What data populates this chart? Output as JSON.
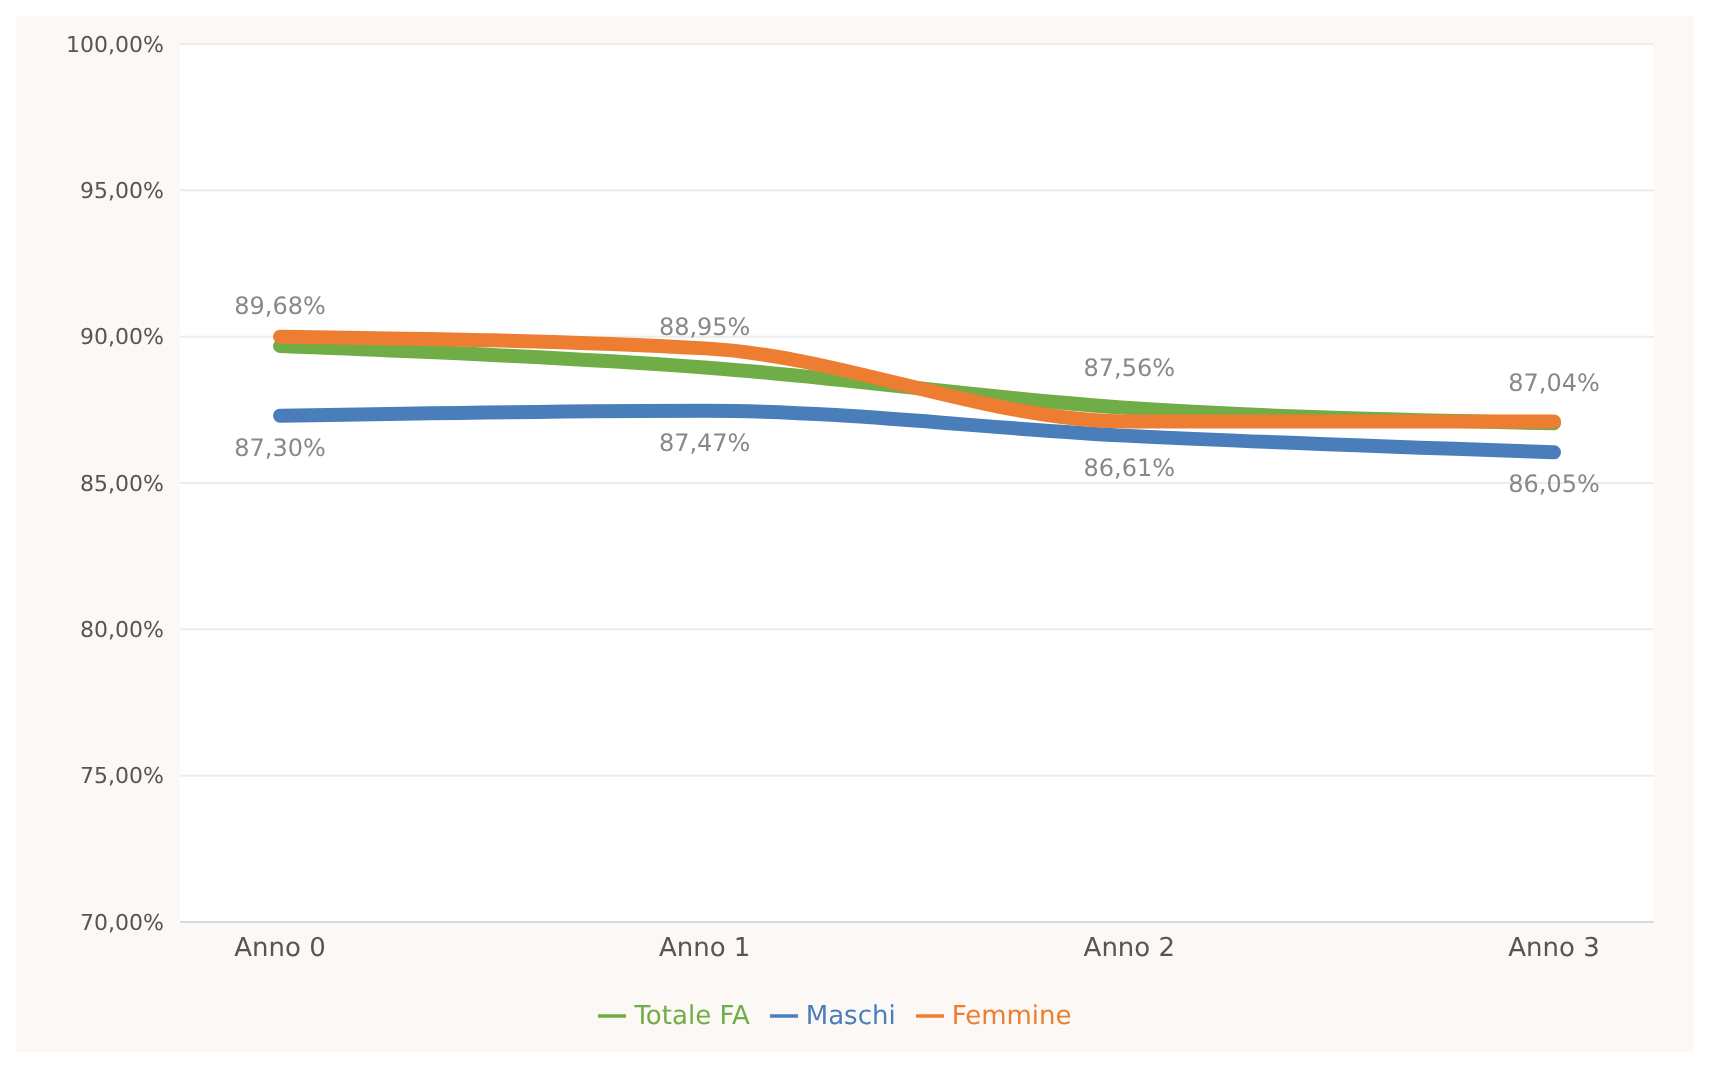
{
  "chart_data": {
    "type": "line",
    "categories": [
      "Anno 0",
      "Anno 1",
      "Anno 2",
      "Anno 3"
    ],
    "series": [
      {
        "name": "Totale FA",
        "color": "#70ad47",
        "values": [
          89.68,
          88.95,
          87.56,
          87.04
        ],
        "value_labels": [
          "89,68%",
          "88,95%",
          "87,56%",
          "87,04%"
        ]
      },
      {
        "name": "Maschi",
        "color": "#4a7ebb",
        "values": [
          87.3,
          87.47,
          86.61,
          86.05
        ],
        "value_labels": [
          "87,30%",
          "87,47%",
          "86,61%",
          "86,05%"
        ]
      },
      {
        "name": "Femmine",
        "color": "#ed7d31",
        "values": [
          90.0,
          89.6,
          87.1,
          87.1
        ]
      }
    ],
    "ylim": [
      70,
      100
    ],
    "yticks": [
      {
        "value": 70,
        "label": "70,00%"
      },
      {
        "value": 75,
        "label": "75,00%"
      },
      {
        "value": 80,
        "label": "80,00%"
      },
      {
        "value": 85,
        "label": "85,00%"
      },
      {
        "value": 90,
        "label": "90,00%"
      },
      {
        "value": 95,
        "label": "95,00%"
      },
      {
        "value": 100,
        "label": "100,00%"
      }
    ],
    "grid": "y",
    "legend": "bottom",
    "marker": "none",
    "line_style": "solid"
  }
}
